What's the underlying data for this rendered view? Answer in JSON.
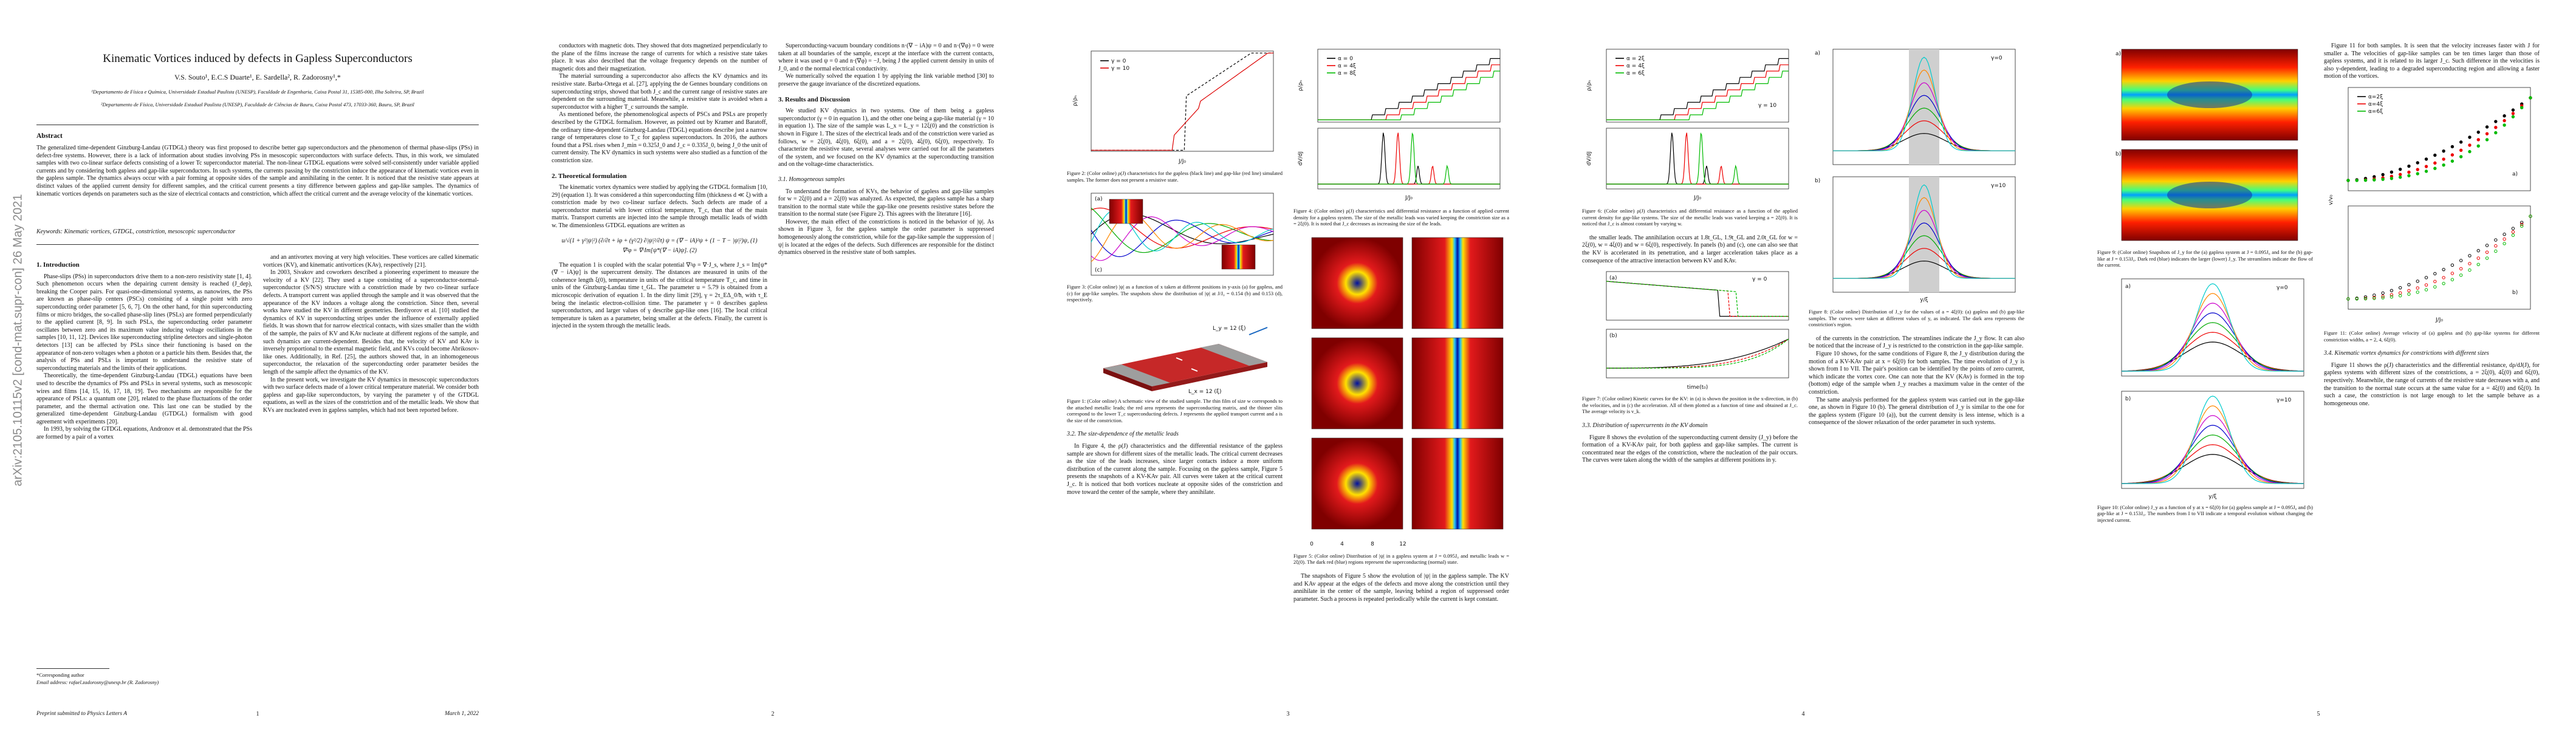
{
  "arxiv_stamp": "arXiv:2105.10115v2  [cond-mat.supr-con]  26 May 2021",
  "header": {
    "title": "Kinematic Vortices induced by defects in Gapless Superconductors",
    "authors": "V.S. Souto¹, E.C.S Duarte¹, E. Sardella², R. Zadorosny¹,*",
    "affiliations": [
      "¹Departamento de Física e Química, Universidade Estadual Paulista (UNESP), Faculdade de Engenharia, Caixa Postal 31, 15385-000, Ilha Solteira, SP, Brazil",
      "²Departamento de Física, Universidade Estadual Paulista (UNESP), Faculdade de Ciências de Bauru, Caixa Postal 473, 17033-360, Bauru, SP, Brazil"
    ],
    "abstract_heading": "Abstract",
    "abstract": "The generalized time-dependent Ginzburg-Landau (GTDGL) theory was first proposed to describe better gap superconductors and the phenomenon of thermal phase-slips (PSs) in defect-free systems. However, there is a lack of information about studies involving PSs in mesoscopic superconductors with surface defects. Thus, in this work, we simulated samples with two co-linear surface defects consisting of a lower Tc superconductor material. The non-linear GTDGL equations were solved self-consistently under variable applied currents and by considering both gapless and gap-like superconductors. In such systems, the currents passing by the constriction induce the appearance of kinematic vortices even in the gapless sample. The dynamics always occur with a pair forming at opposite sides of the sample and annihilating in the center. It is noticed that the resistive state appears at distinct values of the applied current density for different samples, and the critical current presents a tiny difference between gapless and gap-like samples. The dynamics of kinematic vortices depends on parameters such as the size of electrical contacts and constriction, which affect the critical current and the average velocity of the kinematic vortices.",
    "keywords": "Keywords: Kinematic vortices, GTDGL, constriction, mesoscopic superconductor"
  },
  "footnote": [
    "*Corresponding author",
    "Email address: rafael.zadorosny@unesp.br (R. Zadorosny)"
  ],
  "footer": {
    "journal": "Preprint submitted to Physics Letters A",
    "date": "March 1, 2022"
  },
  "page_numbers": [
    "1",
    "2",
    "3",
    "4",
    "5"
  ],
  "columns": [
    [
      {
        "heading": "1. Introduction"
      },
      {
        "p": "Phase-slips (PSs) in superconductors drive them to a non-zero resistivity state [1, 4]. Such phenomenon occurs when the depairing current density is reached (J_dep), breaking the Cooper pairs. For quasi-one-dimensional systems, as nanowires, the PSs are known as phase-slip centers (PSCs) consisting of a single point with zero superconducting order parameter [5, 6, 7]. On the other hand, for thin superconducting films or micro bridges, the so-called phase-slip lines (PSLs) are formed perpendicularly to the applied current [8, 9]. In such PSLs, the superconducting order parameter oscillates between zero and its maximum value inducing voltage oscillations in the samples [10, 11, 12]. Devices like superconducting stripline detectors and single-photon detectors [13] can be affected by PSLs since their functioning is based on the appearance of non-zero voltages when a photon or a particle hits them. Besides that, the analysis of PSs and PSLs is important to understand the resistive state of superconducting materials and the limits of their applications."
      },
      {
        "p": "Theoretically, the time-dependent Ginzburg-Landau (TDGL) equations have been used to describe the dynamics of PSs and PSLs in several systems, such as mesoscopic wires and films [14, 15, 16, 17, 18, 19]. Two mechanisms are responsible for the appearance of PSLs: a quantum one [20], related to the phase fluctuations of the order parameter, and the thermal activation one. This last one can be studied by the generalized time-dependent Ginzburg-Landau (GTDGL) formalism with good agreement with experiments [20]."
      },
      {
        "p": "In 1993, by solving the GTDGL equations, Andronov et al. demonstrated that the PSs are formed by a pair of a vortex"
      }
    ],
    [
      {
        "p": "and an antivortex moving at very high velocities. These vortices are called kinematic vortices (KV), and kinematic antivortices (KAv), respectively [21]."
      },
      {
        "p": "In 2003, Sivakov and coworkers described a pioneering experiment to measure the velocity of a KV [22]. They used a tape consisting of a superconductor-normal-superconductor (S/N/S) structure with a constriction made by two co-linear surface defects. A transport current was applied through the sample and it was observed that the appearance of the KV induces a voltage along the constriction. Since then, several works have studied the KV in different geometries. Berdiyorov et al. [10] studied the dynamics of KV in superconducting stripes under the influence of externally applied fields. It was shown that for narrow electrical contacts, with sizes smaller than the width of the sample, the pairs of KV and KAv nucleate at different regions of the sample, and such dynamics are current-dependent. Besides that, the velocity of KV and KAv is inversely proportional to the external magnetic field, and KVs could become Abrikosov-like ones. Additionally, in Ref. [25], the authors showed that, in an inhomogeneous superconductor, the relaxation of the superconducting order parameter besides the length of the sample affect the dynamics of the KV."
      },
      {
        "p": "In the present work, we investigate the KV dynamics in mesoscopic superconductors with two surface defects made of a lower critical temperature material. We consider both gapless and gap-like superconductors, by varying the parameter γ of the GTDGL equations, as well as the sizes of the constriction and of the metallic leads. We show that KVs are nucleated even in gapless samples, which had not been reported before."
      }
    ],
    [
      {
        "p": "conductors with magnetic dots. They showed that dots magnetized perpendicularly to the plane of the films increase the range of currents for which a resistive state takes place. It was also described that the voltage frequency depends on the number of magnetic dots and their magnetization."
      },
      {
        "p": "The material surrounding a superconductor also affects the KV dynamics and its resistive state. Barba-Ortega et al. [27], applying the de Gennes boundary conditions on superconducting strips, showed that both J_c and the current range of resistive states are dependent on the surrounding material. Meanwhile, a resistive state is avoided when a superconductor with a higher T_c surrounds the sample."
      },
      {
        "p": "As mentioned before, the phenomenological aspects of PSCs and PSLs are properly described by the GTDGL formalism. However, as pointed out by Kramer and Baratoff, the ordinary time-dependent Ginzburg-Landau (TDGL) equations describe just a narrow range of temperatures close to T_c for gapless superconductors. In 2016, the authors found that a PSL rises when J_min = 0.325J_0 and J_c = 0.335J_0, being J_0 the unit of current density. The KV dynamics in such systems were also studied as a function of the constriction size."
      },
      {
        "heading": "2. Theoretical formulation"
      },
      {
        "p": "The kinematic vortex dynamics were studied by applying the GTDGL formalism [10, 29] (equation 1). It was considered a thin superconducting film (thickness d ≪ ξ) with a constriction made by two co-linear surface defects. Such defects are made of a superconductor material with lower critical temperature, T_c, than that of the main matrix. Transport currents are injected into the sample through metallic leads of width w. The dimensionless GTDGL equations are written as"
      },
      {
        "equation": [
          "u/√(1 + γ²|ψ|²) (∂/∂t + iφ + (γ²/2) ∂|ψ|²/∂t) ψ = (∇ − iA)²ψ + (1 − T − |ψ|²)ψ,   (1)",
          "∇²φ = ∇·Im[ψ*(∇ − iA)ψ].   (2)"
        ]
      },
      {
        "p": "The equation 1 is coupled with the scalar potential ∇²φ = ∇·J_s, where J_s = Im[ψ*(∇ − iA)ψ] is the supercurrent density. The distances are measured in units of the coherence length ξ(0), temperature in units of the critical temperature T_c, and time in units of the Ginzburg-Landau time t_GL. The parameter u = 5.79 is obtained from a microscopic derivation of equation 1. In the dirty limit [29], γ = 2τ_EΔ_0/ħ, with τ_E being the inelastic electron-collision time. The parameter γ = 0 describes gapless superconductors, and larger values of γ describe gap-like ones [16]. The local critical temperature is taken as a parameter, being smaller at the defects. Finally, the current is injected in the system through the metallic leads."
      }
    ],
    [
      {
        "p": "Superconducting-vacuum boundary conditions n·(∇ − iA)ψ = 0 and n·(∇φ) = 0 were taken at all boundaries of the sample, except at the interface with the current contacts, where it was used ψ = 0 and n·(∇φ) = −J, being J the applied current density in units of J_0, and σ the normal electrical conductivity."
      },
      {
        "p": "We numerically solved the equation 1 by applying the link variable method [30] to preserve the gauge invariance of the discretized equations."
      },
      {
        "heading": "3. Results and Discussion"
      },
      {
        "p": "We studied KV dynamics in two systems. One of them being a gapless superconductor (γ = 0 in equation 1), and the other one being a gap-like material (γ = 10 in equation 1). The size of the sample was L_x = L_y = 12ξ(0) and the constriction is shown in Figure 1. The sizes of the electrical leads and of the constriction were varied as follows, w = 2ξ(0), 4ξ(0), 6ξ(0), and a = 2ξ(0), 4ξ(0), 6ξ(0), respectively. To characterize the resistive state, several analyses were carried out for all the parameters of the system, and we focused on the KV dynamics at the superconducting transition and on the voltage-time characteristics."
      },
      {
        "subheading": "3.1. Homogeneous samples"
      },
      {
        "p": "To understand the formation of KVs, the behavior of gapless and gap-like samples for w = 2ξ(0) and a = 2ξ(0) was analyzed. As expected, the gapless sample has a sharp transition to the normal state while the gap-like one presents resistive states before the transition to the normal state (see Figure 2). This agrees with the literature [16]."
      },
      {
        "p": "However, the main effect of the constrictions is noticed in the behavior of |ψ|. As shown in Figure 3, for the gapless sample the order parameter is suppressed homogeneously along the constriction, while for the gap-like sample the suppression of |ψ| is located at the edges of the defects. Such differences are responsible for the distinct dynamics observed in the resistive state of both samples."
      }
    ],
    [
      {
        "figure": {
          "labels": [
            "γ = 0",
            "γ = 10",
            "J/J₀",
            "ρ/ρₙ"
          ]
        }
      },
      {
        "caption": "Figure 2: (Color online) ρ(J) characteristics for the gapless (black line) and gap-like (red line) simulated samples. The former does not present a resistive state."
      },
      {
        "figure": {
          "labels": [
            "(a)",
            "(c)"
          ]
        }
      },
      {
        "caption": "Figure 3: (Color online) |ψ| as a function of x taken at different positions in y-axis (a) for gapless, and (c) for gap-like samples. The snapshots show the distribution of |ψ| at J/J₀ = 0.154 (b) and 0.153 (d), respectively."
      },
      {
        "figure": {
          "labels": [
            "L_y = 12 (ξ)",
            "L_x = 12 (ξ)"
          ]
        }
      },
      {
        "caption": "Figure 1: (Color online) A schematic view of the studied sample. The thin film of size w corresponds to the attached metallic leads; the red area represents the superconducting matrix, and the thinner slits correspond to the lower T_c superconducting defects. J represents the applied transport current and a is the size of the constriction."
      },
      {
        "subheading": "3.2. The size-dependence of the metallic leads"
      },
      {
        "p": "In Figure 4, the ρ(J) characteristics and the differential resistance of the gapless sample are shown for different sizes of the metallic leads. The critical current decreases as the size of the leads increases, since larger contacts induce a more uniform distribution of the current along the sample. Focusing on the gapless sample, Figure 5 presents the snapshots of a KV-KAv pair. All curves were taken at the critical current J_c. It is noticed that both vortices nucleate at opposite sides of the constriction and move toward the center of the sample, where they annihilate."
      }
    ],
    [
      {
        "figure": {
          "labels": [
            "α = 0",
            "α = 4ξ",
            "α = 8ξ",
            "J/J₀",
            "ρ/ρₙ",
            "dV/dJ"
          ]
        }
      },
      {
        "caption": "Figure 4: (Color online) ρ(J) characteristics and differential resistance as a function of applied current density for a gapless system. The size of the metallic leads was varied keeping the constriction size as a = 2ξ(0). It is noted that J_c decreases as increasing the size of the leads."
      },
      {
        "figure": {
          "labels": [
            "0",
            "4",
            "8",
            "12"
          ]
        }
      },
      {
        "caption": "Figure 5: (Color online) Distribution of |ψ| in a gapless system at J = 0.095J₀ and metallic leads w = 2ξ(0). The dark red (blue) regions represent the superconducting (normal) state."
      },
      {
        "p": "The snapshots of Figure 5 show the evolution of |ψ| in the gapless sample. The KV and KAv appear at the edges of the defects and move along the constriction until they annihilate in the center of the sample, leaving behind a region of suppressed order parameter. Such a process is repeated periodically while the current is kept constant."
      }
    ],
    [
      {
        "figure": {
          "labels": [
            "α = 2ξ",
            "α = 4ξ",
            "α = 6ξ",
            "J/J₀",
            "ρ/ρₙ",
            "dV/dJ",
            "γ = 10"
          ]
        }
      },
      {
        "caption": "Figure 6: (Color online) ρ(J) characteristics and differential resistance as a function of the applied current density for gap-like systems. The size of the metallic leads was varied keeping a = 2ξ(0). It is noticed that J_c is almost constant by varying w."
      },
      {
        "p": "the smaller leads. The annihilation occurs at 1.8t_GL, 1.9t_GL and 2.0t_GL for w = 2ξ(0), w = 4ξ(0) and w = 6ξ(0), respectively. In panels (b) and (c), one can also see that the KV is accelerated in its penetration, and a larger acceleration takes place as a consequence of the attractive interaction between KV and KAv."
      },
      {
        "figure": {
          "labels": [
            "γ = 0",
            "(a)",
            "(b)",
            "time(t₀)"
          ]
        }
      },
      {
        "caption": "Figure 7: (Color online) Kinetic curves for the KV: in (a) is shown the position in the x-direction, in (b) the velocities, and in (c) the acceleration. All of them plotted as a function of time and obtained at J_c. The average velocity is v_k."
      },
      {
        "subheading": "3.3. Distribution of supercurrents in the KV domain"
      },
      {
        "p": "Figure 8 shows the evolution of the superconducting current density (J_y) before the formation of a KV-KAv pair, for both gapless and gap-like samples. The current is concentrated near the edges of the constriction, where the nucleation of the pair occurs. The curves were taken along the width of the samples at different positions in y."
      }
    ],
    [
      {
        "figure": {
          "labels": [
            "a)",
            "b)",
            "γ=0",
            "γ=10",
            "y/ξ"
          ]
        }
      },
      {
        "caption": "Figure 8: (Color online) Distribution of J_y for the values of a = 4ξ(0): (a) gapless and (b) gap-like samples. The curves were taken at different values of y, as indicated. The dark area represents the constriction's region."
      },
      {
        "p": "of the currents in the constriction. The streamlines indicate the J_y flow. It can also be noticed that the increase of J_y is restricted to the constriction in the gap-like sample."
      },
      {
        "p": "Figure 10 shows, for the same conditions of Figure 8, the J_y distribution during the motion of a KV-KAv pair at x = 6ξ(0) for both samples. The time evolution of J_y is shown from I to VII. The pair's position can be identified by the points of zero current, which indicate the vortex core. One can note that the KV (KAv) is formed in the top (bottom) edge of the sample when J_y reaches a maximum value in the center of the constriction."
      },
      {
        "p": "The same analysis performed for the gapless system was carried out in the gap-like one, as shown in Figure 10 (b). The general distribution of J_y is similar to the one for the gapless system (Figure 10 (a)), but the current density is less intense, which is a consequence of the slower relaxation of the order parameter in such systems."
      }
    ],
    [
      {
        "figure": {
          "labels": [
            "a)",
            "b)"
          ]
        }
      },
      {
        "caption": "Figure 9: (Color online) Snapshots of J_y for the (a) gapless system at J = 0.095J₀ and for the (b) gap-like at J = 0.153J₀. Dark red (blue) indicates the larger (lower) J_y. The streamlines indicate the flow of the current."
      },
      {
        "figure": {
          "labels": [
            "a)",
            "b)",
            "γ=0",
            "γ=10",
            "y/ξ"
          ]
        }
      },
      {
        "caption": "Figure 10: (Color online) J_y as a function of y at x = 6ξ(0) for (a) gapless sample at J = 0.095J₀ and (b) gap-like at J = 0.153J₀. The numbers from I to VII indicate a temporal evolution without changing the injected current."
      }
    ],
    [
      {
        "p": "Figure 11 for both samples. It is seen that the velocity increases faster with J for smaller a. The velocities of gap-like samples can be ten times larger than those of gapless systems, and it is related to its larger J_c. Such difference in the velocities is also y-dependent, leading to a degraded superconducting region and allowing a faster motion of the vortices."
      },
      {
        "figure": {
          "labels": [
            "α=2ξ",
            "α=4ξ",
            "α=6ξ",
            "a)",
            "b)",
            "J/J₀",
            "v/v₀"
          ]
        }
      },
      {
        "caption": "Figure 11: (Color online) Average velocity of (a) gapless and (b) gap-like systems for different constriction widths, a = 2, 4, 6ξ(0)."
      },
      {
        "subheading": "3.4. Kinematic vortex dynamics for constrictions with different sizes"
      },
      {
        "p": "Figure 11 shows the ρ(J) characteristics and the differential resistance, dρ/dJ(J), for gapless systems with different sizes of the constrictions, a = 2ξ(0), 4ξ(0) and 6ξ(0), respectively. Meanwhile, the range of currents of the resistive state decreases with a, and the transition to the normal state occurs at the same value for a = 4ξ(0) and 6ξ(0). In such a case, the constriction is not large enough to let the sample behave as a homogeneous one."
      }
    ]
  ]
}
